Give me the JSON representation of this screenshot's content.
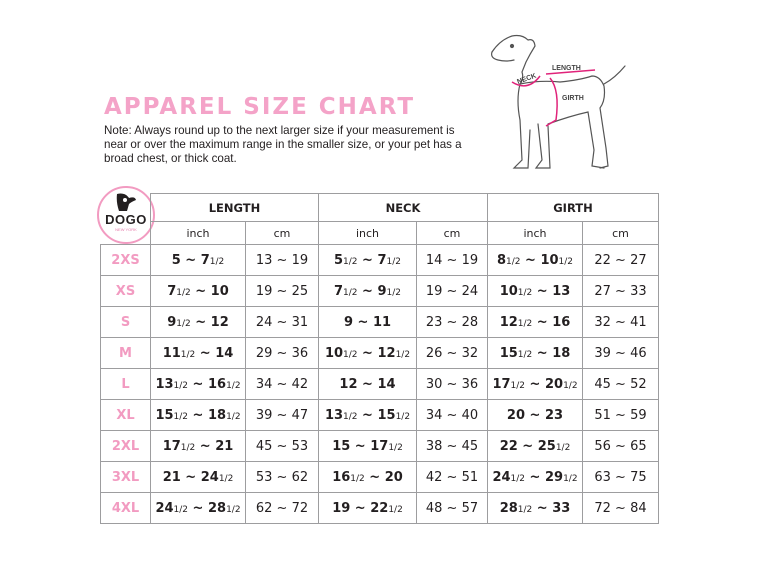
{
  "title": "APPAREL SIZE CHART",
  "note": "Note: Always round up to the next larger size if your measurement is near or over the maximum range in the smaller size, or your pet has a broad chest, or thick coat.",
  "logo": {
    "name": "DOGO",
    "sub": "NEW YORK"
  },
  "diagram": {
    "length": "LENGTH",
    "neck": "NECK",
    "girth": "GIRTH"
  },
  "colors": {
    "accent": "#f29bc1",
    "border": "#9d9d9f"
  },
  "table": {
    "groups": [
      "LENGTH",
      "NECK",
      "GIRTH"
    ],
    "units": [
      "inch",
      "cm",
      "inch",
      "cm",
      "inch",
      "cm"
    ],
    "rows": [
      {
        "size": "2XS",
        "cells": [
          "5 ~ 7 1/2",
          "13 ~ 19",
          "5 1/2 ~ 7 1/2",
          "14 ~ 19",
          "8 1/2 ~ 10 1/2",
          "22 ~ 27"
        ]
      },
      {
        "size": "XS",
        "cells": [
          "7 1/2 ~ 10",
          "19 ~ 25",
          "7 1/2 ~ 9 1/2",
          "19 ~ 24",
          "10 1/2 ~ 13",
          "27 ~ 33"
        ]
      },
      {
        "size": "S",
        "cells": [
          "9 1/2 ~ 12",
          "24 ~ 31",
          "9 ~ 11",
          "23 ~ 28",
          "12 1/2 ~ 16",
          "32 ~ 41"
        ]
      },
      {
        "size": "M",
        "cells": [
          "11 1/2 ~ 14",
          "29 ~ 36",
          "10 1/2 ~ 12 1/2",
          "26 ~ 32",
          "15 1/2 ~ 18",
          "39 ~ 46"
        ]
      },
      {
        "size": "L",
        "cells": [
          "13 1/2 ~ 16 1/2",
          "34 ~ 42",
          "12 ~ 14",
          "30 ~ 36",
          "17 1/2 ~ 20 1/2",
          "45 ~ 52"
        ]
      },
      {
        "size": "XL",
        "cells": [
          "15 1/2 ~ 18 1/2",
          "39 ~ 47",
          "13 1/2 ~ 15 1/2",
          "34 ~ 40",
          "20 ~ 23",
          "51 ~ 59"
        ]
      },
      {
        "size": "2XL",
        "cells": [
          "17 1/2 ~ 21",
          "45 ~ 53",
          "15 ~ 17 1/2",
          "38 ~ 45",
          "22 ~ 25 1/2",
          "56 ~ 65"
        ]
      },
      {
        "size": "3XL",
        "cells": [
          "21 ~ 24 1/2",
          "53 ~ 62",
          "16 1/2 ~ 20",
          "42 ~ 51",
          "24 1/2 ~ 29 1/2",
          "63 ~ 75"
        ]
      },
      {
        "size": "4XL",
        "cells": [
          "24 1/2 ~ 28 1/2",
          "62 ~ 72",
          "19 ~ 22 1/2",
          "48 ~ 57",
          "28 1/2 ~ 33",
          "72 ~ 84"
        ]
      }
    ]
  }
}
